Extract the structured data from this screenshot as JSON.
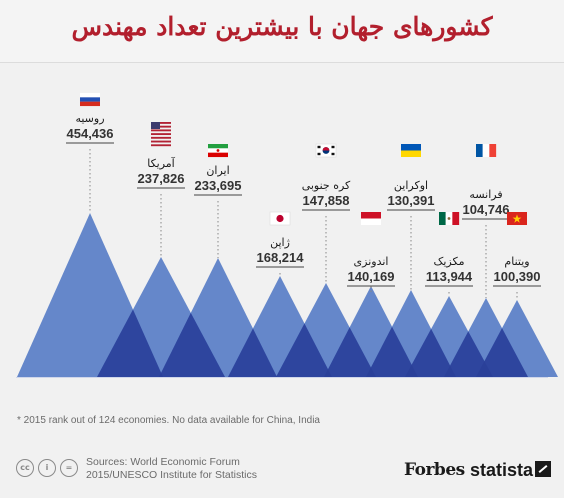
{
  "title": "کشورهای جهان با بیشترین تعداد مهندس",
  "chart_data": {
    "type": "area",
    "title": "کشورهای جهان با بیشترین تعداد مهندس",
    "categories": [
      "روسیه",
      "آمریکا",
      "ایران",
      "ژاپن",
      "کره جنوبی",
      "اندونزی",
      "اوکراین",
      "مکزیک",
      "فرانسه",
      "ویتنام"
    ],
    "values": [
      454436,
      237826,
      233695,
      168214,
      147858,
      140169,
      130391,
      113944,
      104746,
      100390
    ],
    "value_labels": [
      "454,436",
      "237,826",
      "233,695",
      "168,214",
      "147,858",
      "140,169",
      "130,391",
      "113,944",
      "104,746",
      "100,390"
    ],
    "flags": [
      "russia-flag",
      "usa-flag",
      "iran-flag",
      "japan-flag",
      "south-korea-flag",
      "indonesia-flag",
      "ukraine-flag",
      "mexico-flag",
      "france-flag",
      "vietnam-flag"
    ],
    "colors": {
      "light": "#5177c4",
      "dark": "#2a3f99",
      "dotted": "#888888"
    }
  },
  "footnote": "* 2015 rank out of 124 economies. No data available for China, India",
  "source": "Sources: World Economic Forum 2015/UNESCO Institute for Statistics",
  "brand": {
    "forbes": "Forbes",
    "statista": "statista"
  }
}
